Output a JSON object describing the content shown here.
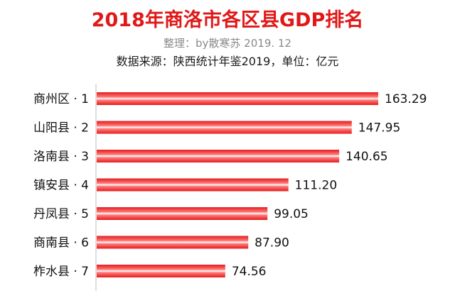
{
  "title": "2018年商洛市各区县GDP排名",
  "subtitle": "整理：by散寒苏  2019. 12",
  "source": "数据来源：陕西统计年鉴2019，单位：亿元",
  "chart_data": {
    "type": "bar",
    "orientation": "horizontal",
    "categories": [
      "商州区 · 1",
      "山阳县 · 2",
      "洛南县 · 3",
      "镇安县 · 4",
      "丹凤县 · 5",
      "商南县 · 6",
      "柞水县 · 7"
    ],
    "values": [
      163.29,
      147.95,
      140.65,
      111.2,
      99.05,
      87.9,
      74.56
    ],
    "value_labels": [
      "163.29",
      "147.95",
      "140.65",
      "111.20",
      "99.05",
      "87.90",
      "74.56"
    ],
    "title": "2018年商洛市各区县GDP排名",
    "xlim": [
      0,
      163.29
    ],
    "grid": false,
    "colors": {
      "bar": "#e51c1c",
      "highlight": "#ffffff",
      "title": "#e01818",
      "axis": "#bfbfbf"
    }
  }
}
